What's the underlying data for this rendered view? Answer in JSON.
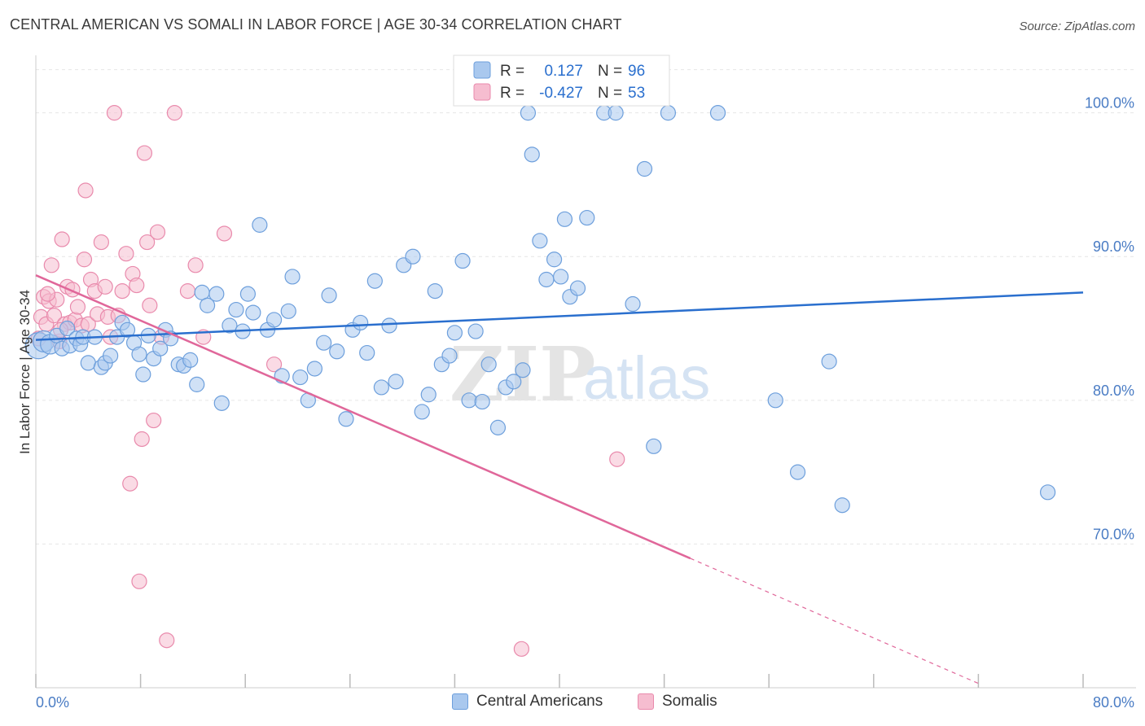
{
  "header": {
    "title": "CENTRAL AMERICAN VS SOMALI IN LABOR FORCE | AGE 30-34 CORRELATION CHART",
    "source": "Source: ZipAtlas.com"
  },
  "watermark": {
    "zip": "ZIP",
    "atlas": "atlas"
  },
  "legend": {
    "rows": [
      {
        "r_label": "R =",
        "r_value": "0.127",
        "n_label": "N =",
        "n_value": "96"
      },
      {
        "r_label": "R =",
        "r_value": "-0.427",
        "n_label": "N =",
        "n_value": "53"
      }
    ]
  },
  "bottom_legend": {
    "series1": "Central Americans",
    "series2": "Somalis"
  },
  "colors": {
    "blue_fill": "#a9c8ee",
    "blue_stroke": "#6d9fdc",
    "blue_line": "#2a6fce",
    "pink_fill": "#f6bdd0",
    "pink_stroke": "#e98aac",
    "pink_line": "#e0679a",
    "tick_label": "#4a7cc4"
  },
  "chart_data": {
    "type": "scatter",
    "title": "CENTRAL AMERICAN VS SOMALI IN LABOR FORCE | AGE 30-34 CORRELATION CHART",
    "xlabel": "",
    "ylabel": "In Labor Force | Age 30-34",
    "xlim": [
      0,
      80
    ],
    "ylim": [
      60,
      104
    ],
    "x_tick_labels": [
      "0.0%",
      "80.0%"
    ],
    "y_ticks": [
      70,
      80,
      90,
      100
    ],
    "y_tick_labels": [
      "70.0%",
      "80.0%",
      "90.0%",
      "100.0%"
    ],
    "grid": true,
    "legend_position": "top-center",
    "series": [
      {
        "name": "Central Americans",
        "R": 0.127,
        "N": 96,
        "trend": {
          "x": [
            0,
            80
          ],
          "y": [
            84.2,
            87.5
          ]
        },
        "points": [
          [
            0.2,
            83.8
          ],
          [
            0.6,
            84.1
          ],
          [
            1.1,
            83.9
          ],
          [
            1.6,
            84.5
          ],
          [
            2.0,
            83.6
          ],
          [
            2.4,
            85.0
          ],
          [
            2.6,
            83.8
          ],
          [
            3.1,
            84.3
          ],
          [
            3.4,
            83.9
          ],
          [
            3.6,
            84.4
          ],
          [
            4.0,
            82.6
          ],
          [
            4.5,
            84.4
          ],
          [
            5.0,
            82.3
          ],
          [
            5.3,
            82.6
          ],
          [
            5.7,
            83.1
          ],
          [
            6.2,
            84.4
          ],
          [
            6.6,
            85.4
          ],
          [
            7.0,
            84.9
          ],
          [
            7.5,
            84.0
          ],
          [
            7.9,
            83.2
          ],
          [
            8.2,
            81.8
          ],
          [
            8.6,
            84.5
          ],
          [
            9.0,
            82.9
          ],
          [
            9.5,
            83.6
          ],
          [
            9.9,
            84.9
          ],
          [
            10.3,
            84.3
          ],
          [
            10.9,
            82.5
          ],
          [
            11.3,
            82.4
          ],
          [
            11.8,
            82.8
          ],
          [
            12.3,
            81.1
          ],
          [
            12.7,
            87.5
          ],
          [
            13.1,
            86.6
          ],
          [
            13.8,
            87.4
          ],
          [
            14.2,
            79.8
          ],
          [
            14.8,
            85.2
          ],
          [
            15.3,
            86.3
          ],
          [
            15.8,
            84.8
          ],
          [
            16.2,
            87.4
          ],
          [
            16.6,
            86.1
          ],
          [
            17.1,
            92.2
          ],
          [
            17.7,
            84.9
          ],
          [
            18.2,
            85.6
          ],
          [
            18.8,
            81.7
          ],
          [
            19.3,
            86.2
          ],
          [
            19.6,
            88.6
          ],
          [
            20.2,
            81.6
          ],
          [
            20.8,
            80.0
          ],
          [
            21.3,
            82.2
          ],
          [
            22.0,
            84.0
          ],
          [
            22.4,
            87.3
          ],
          [
            23.0,
            83.4
          ],
          [
            23.7,
            78.7
          ],
          [
            24.2,
            84.9
          ],
          [
            24.8,
            85.4
          ],
          [
            25.3,
            83.3
          ],
          [
            25.9,
            88.3
          ],
          [
            26.4,
            80.9
          ],
          [
            27.0,
            85.2
          ],
          [
            27.5,
            81.3
          ],
          [
            28.1,
            89.4
          ],
          [
            28.8,
            90.0
          ],
          [
            29.5,
            79.2
          ],
          [
            30.0,
            80.4
          ],
          [
            30.5,
            87.6
          ],
          [
            31.0,
            82.5
          ],
          [
            31.6,
            83.1
          ],
          [
            32.0,
            84.7
          ],
          [
            32.6,
            89.7
          ],
          [
            33.1,
            80.0
          ],
          [
            33.6,
            84.8
          ],
          [
            34.1,
            79.9
          ],
          [
            34.6,
            82.5
          ],
          [
            35.3,
            78.1
          ],
          [
            35.9,
            80.9
          ],
          [
            36.5,
            81.3
          ],
          [
            37.2,
            82.1
          ],
          [
            37.6,
            100.0
          ],
          [
            37.9,
            97.1
          ],
          [
            38.5,
            91.1
          ],
          [
            39.0,
            88.4
          ],
          [
            39.6,
            89.8
          ],
          [
            40.1,
            88.6
          ],
          [
            40.4,
            92.6
          ],
          [
            40.8,
            87.2
          ],
          [
            41.4,
            87.8
          ],
          [
            42.1,
            92.7
          ],
          [
            43.4,
            100.0
          ],
          [
            44.3,
            100.0
          ],
          [
            45.6,
            86.7
          ],
          [
            46.5,
            96.1
          ],
          [
            47.2,
            76.8
          ],
          [
            48.3,
            100.0
          ],
          [
            52.1,
            100.0
          ],
          [
            56.5,
            80.0
          ],
          [
            58.2,
            75.0
          ],
          [
            60.6,
            82.7
          ],
          [
            61.6,
            72.7
          ],
          [
            77.3,
            73.6
          ]
        ]
      },
      {
        "name": "Somalis",
        "R": -0.427,
        "N": 53,
        "trend": {
          "x": [
            0,
            50
          ],
          "y": [
            88.7,
            69.0
          ]
        },
        "trend_dashed": {
          "x": [
            50,
            72
          ],
          "y": [
            69.0,
            60.3
          ]
        },
        "points": [
          [
            0.2,
            84.3
          ],
          [
            0.4,
            85.8
          ],
          [
            0.6,
            87.2
          ],
          [
            0.8,
            85.3
          ],
          [
            1.0,
            86.9
          ],
          [
            1.2,
            89.4
          ],
          [
            1.4,
            85.9
          ],
          [
            1.6,
            87.0
          ],
          [
            1.8,
            84.1
          ],
          [
            2.0,
            91.2
          ],
          [
            2.2,
            85.3
          ],
          [
            2.4,
            87.9
          ],
          [
            2.6,
            85.4
          ],
          [
            2.8,
            87.7
          ],
          [
            3.0,
            85.6
          ],
          [
            3.2,
            86.5
          ],
          [
            3.5,
            85.2
          ],
          [
            3.7,
            89.8
          ],
          [
            3.8,
            94.6
          ],
          [
            4.0,
            85.3
          ],
          [
            4.2,
            88.4
          ],
          [
            4.5,
            87.6
          ],
          [
            4.7,
            86.0
          ],
          [
            5.0,
            91.0
          ],
          [
            5.3,
            87.9
          ],
          [
            5.5,
            85.8
          ],
          [
            5.7,
            84.4
          ],
          [
            6.0,
            100.0
          ],
          [
            6.3,
            85.9
          ],
          [
            6.6,
            87.6
          ],
          [
            6.9,
            90.2
          ],
          [
            7.2,
            74.2
          ],
          [
            7.4,
            88.8
          ],
          [
            7.7,
            88.0
          ],
          [
            7.9,
            67.4
          ],
          [
            8.1,
            77.3
          ],
          [
            8.3,
            97.2
          ],
          [
            8.5,
            91.0
          ],
          [
            8.7,
            86.6
          ],
          [
            9.0,
            78.6
          ],
          [
            9.3,
            91.7
          ],
          [
            9.6,
            84.4
          ],
          [
            10.0,
            63.3
          ],
          [
            10.6,
            100.0
          ],
          [
            11.6,
            87.6
          ],
          [
            12.2,
            89.4
          ],
          [
            12.8,
            84.4
          ],
          [
            14.4,
            91.6
          ],
          [
            18.2,
            82.5
          ],
          [
            37.1,
            62.7
          ],
          [
            44.4,
            75.9
          ],
          [
            0.9,
            87.4
          ],
          [
            1.9,
            84.9
          ]
        ]
      }
    ]
  }
}
